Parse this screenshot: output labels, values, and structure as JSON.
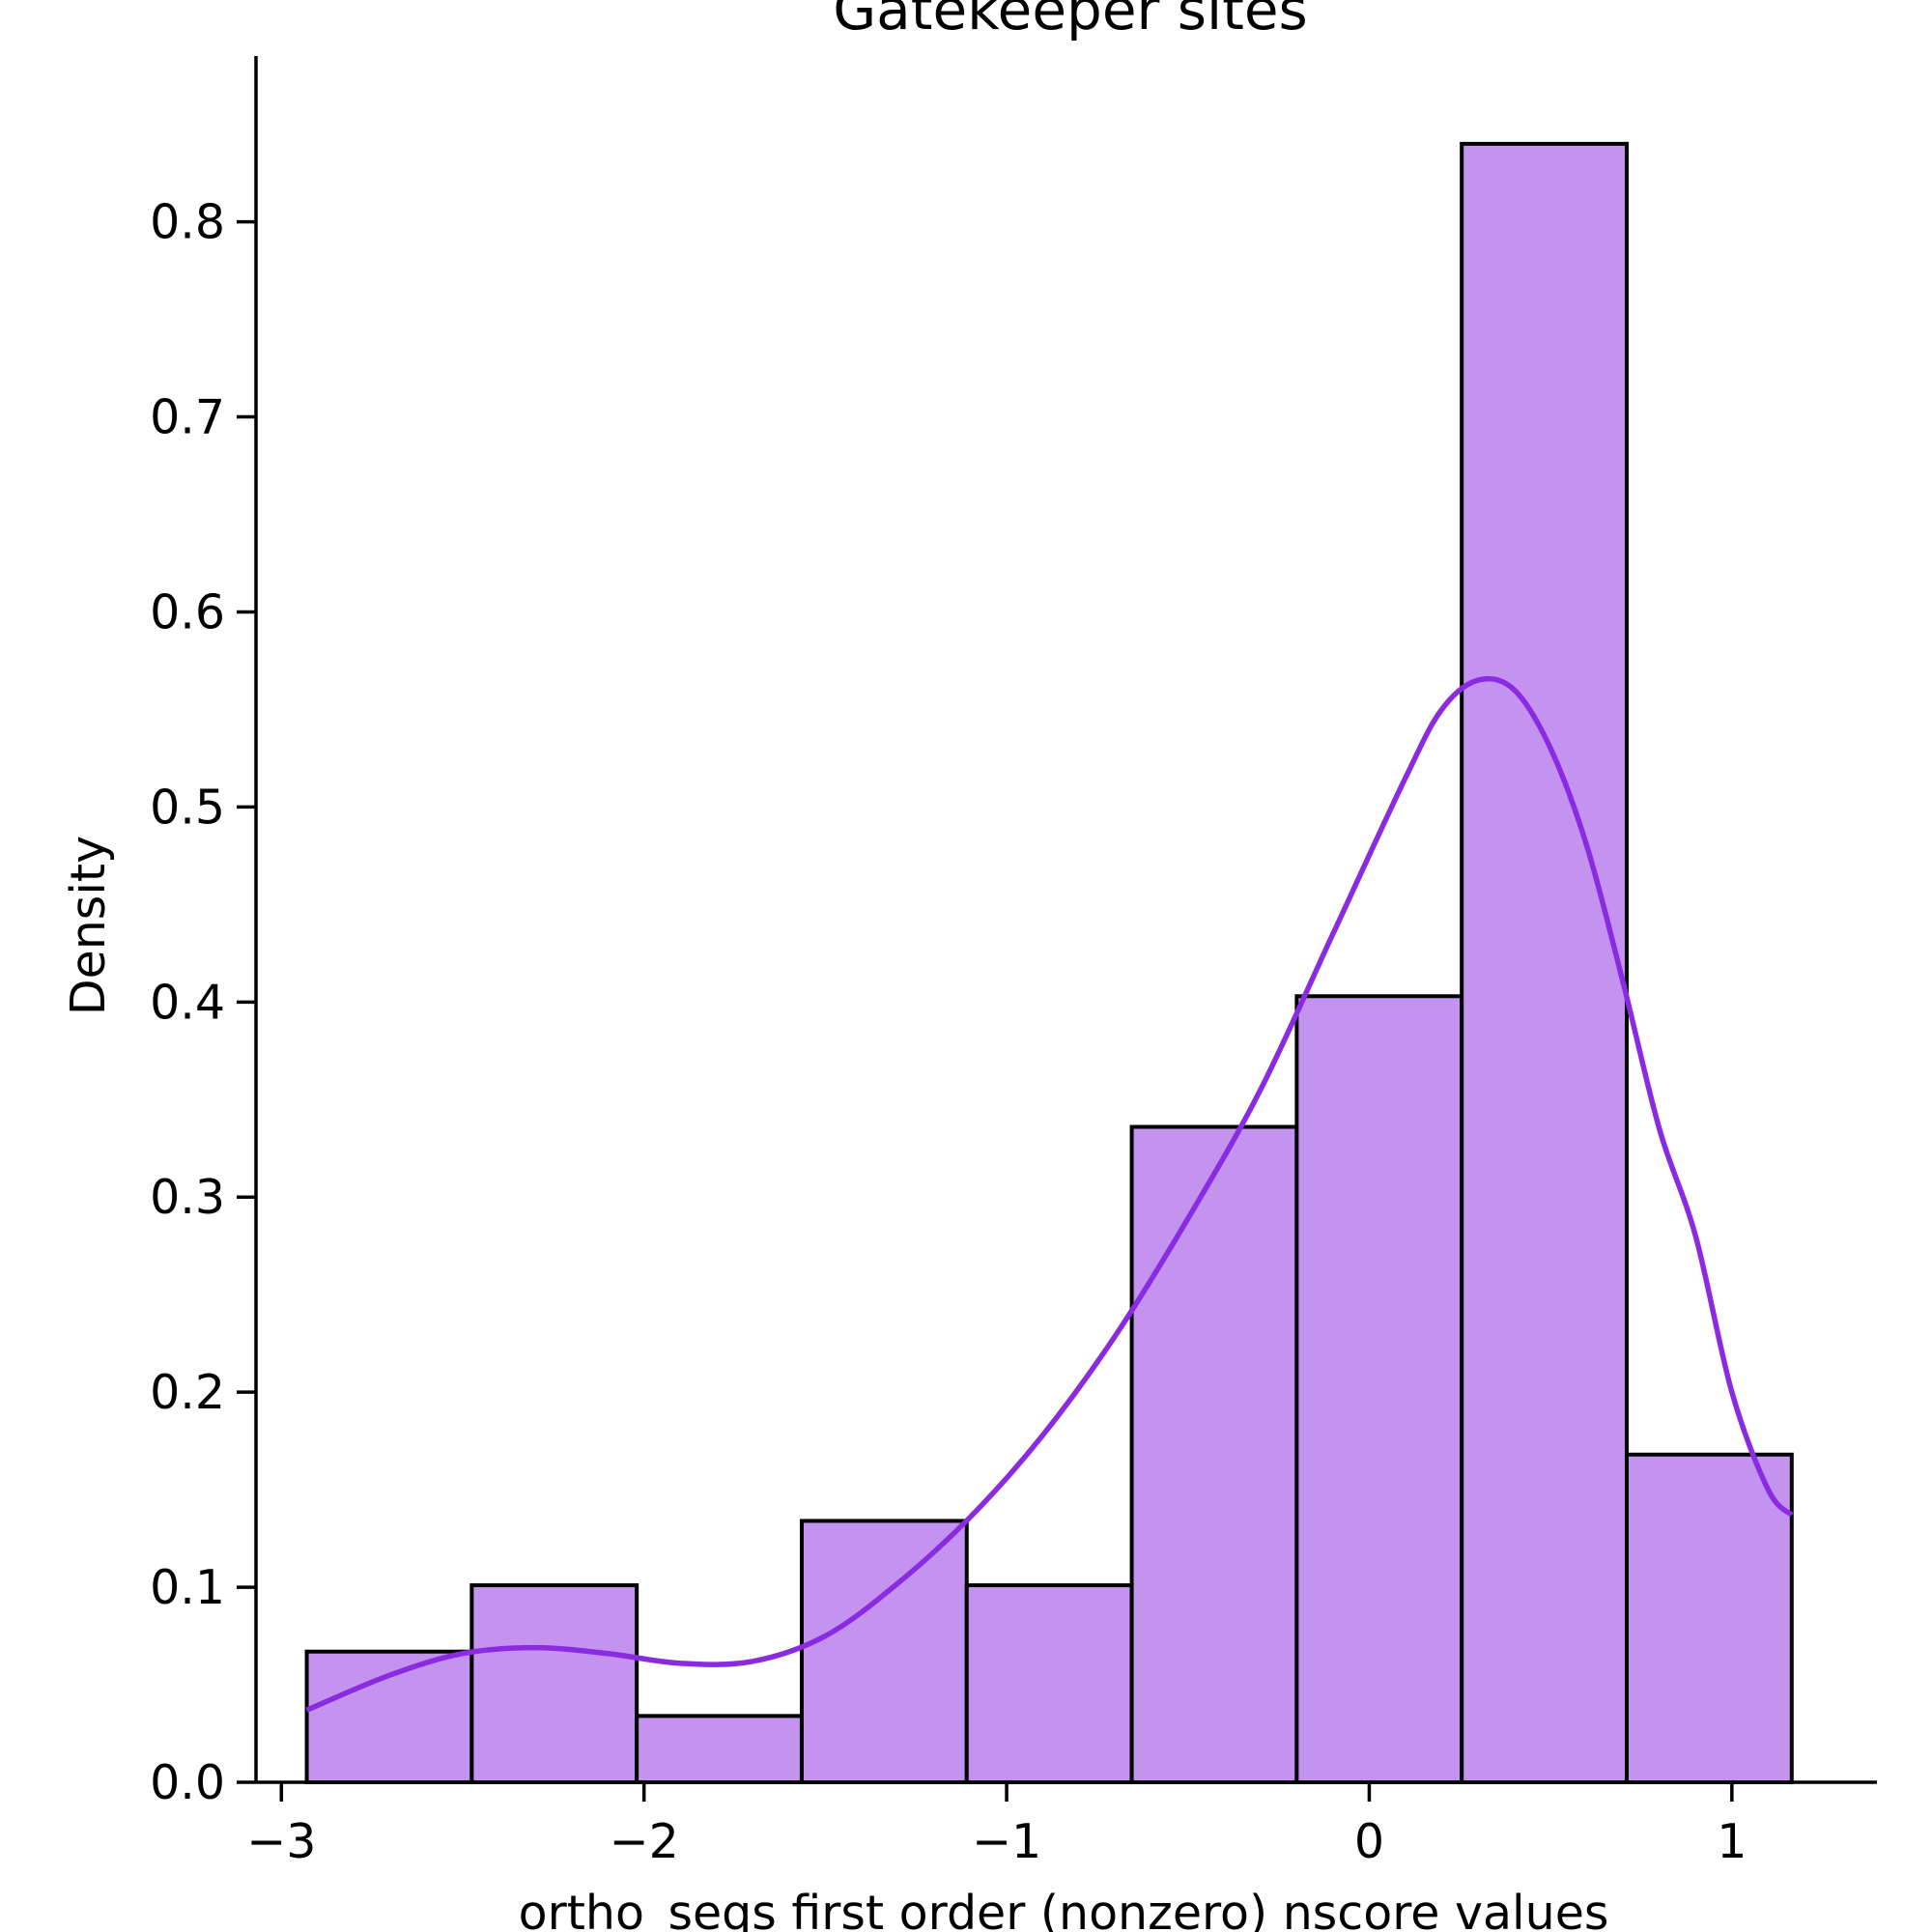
{
  "chart_data": {
    "type": "bar",
    "subtype": "histogram_with_kde",
    "title": "Gatekeeper sites",
    "xlabel": "ortho_seqs first order (nonzero) nscore values",
    "ylabel": "Density",
    "xlim": [
      -3.07,
      1.4
    ],
    "ylim": [
      0,
      0.885
    ],
    "x_ticks": [
      -3,
      -2,
      -1,
      0,
      1
    ],
    "x_tick_labels": [
      "−3",
      "−2",
      "−1",
      "0",
      "1"
    ],
    "y_ticks": [
      0.0,
      0.1,
      0.2,
      0.3,
      0.4,
      0.5,
      0.6,
      0.7,
      0.8
    ],
    "y_tick_labels": [
      "0.0",
      "0.1",
      "0.2",
      "0.3",
      "0.4",
      "0.5",
      "0.6",
      "0.7",
      "0.8"
    ],
    "bin_edges": [
      -2.93,
      -2.475,
      -2.02,
      -1.565,
      -1.11,
      -0.655,
      -0.2,
      0.255,
      0.71,
      1.165
    ],
    "values": [
      0.067,
      0.101,
      0.034,
      0.134,
      0.101,
      0.336,
      0.403,
      0.84,
      0.168
    ],
    "kde": {
      "x": [
        -2.93,
        -2.7,
        -2.5,
        -2.3,
        -2.1,
        -1.9,
        -1.7,
        -1.5,
        -1.3,
        -1.1,
        -0.9,
        -0.7,
        -0.5,
        -0.3,
        -0.1,
        0.1,
        0.2,
        0.3,
        0.4,
        0.5,
        0.6,
        0.7,
        0.8,
        0.9,
        1.0,
        1.1,
        1.165
      ],
      "y": [
        0.037,
        0.055,
        0.066,
        0.069,
        0.066,
        0.061,
        0.062,
        0.075,
        0.102,
        0.136,
        0.178,
        0.229,
        0.289,
        0.355,
        0.435,
        0.515,
        0.55,
        0.565,
        0.56,
        0.53,
        0.48,
        0.41,
        0.335,
        0.28,
        0.2,
        0.15,
        0.137
      ]
    },
    "grid": false,
    "colors": {
      "bar_fill": "#c493ef",
      "bar_edge": "#000000",
      "kde_line": "#8a2be2"
    }
  }
}
